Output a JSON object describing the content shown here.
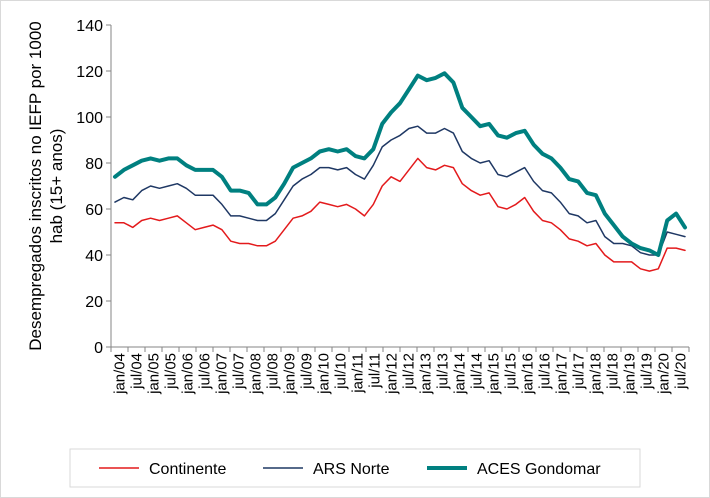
{
  "chart_data": {
    "type": "line",
    "title": "",
    "ylabel_lines": [
      "Desempregados inscritos no IEFP por 1000",
      "hab (15+ anos)"
    ],
    "xlabel": "",
    "ylim": [
      0,
      140
    ],
    "yticks": [
      0,
      20,
      40,
      60,
      80,
      100,
      120,
      140
    ],
    "xticks": [
      "jan/04",
      "jul/04",
      "jan/05",
      "jul/05",
      "jan/06",
      "jul/06",
      "jan/07",
      "jul/07",
      "jan/08",
      "jul/08",
      "jan/09",
      "jul/09",
      "jan/10",
      "jul/10",
      "jan/11",
      "jul/11",
      "jan/12",
      "jul/12",
      "jan/13",
      "jul/13",
      "jan/14",
      "jul/14",
      "jan/15",
      "jul/15",
      "jan/16",
      "jul/16",
      "jan/17",
      "jul/17",
      "jan/18",
      "jul/18",
      "jan/19",
      "jul/19",
      "jan/20",
      "jul/20"
    ],
    "legend_position": "bottom",
    "grid": false,
    "series": [
      {
        "name": "Continente",
        "color": "#e31a1c",
        "width": 1.5,
        "values": [
          54,
          54,
          52,
          55,
          56,
          55,
          56,
          57,
          54,
          51,
          52,
          53,
          51,
          46,
          45,
          45,
          44,
          44,
          46,
          51,
          56,
          57,
          59,
          63,
          62,
          61,
          62,
          60,
          57,
          62,
          70,
          74,
          72,
          77,
          82,
          78,
          77,
          79,
          78,
          71,
          68,
          66,
          67,
          61,
          60,
          62,
          65,
          59,
          55,
          54,
          51,
          47,
          46,
          44,
          45,
          40,
          37,
          37,
          37,
          34,
          33,
          34,
          43,
          43,
          42
        ]
      },
      {
        "name": "ARS Norte",
        "color": "#1f3864",
        "width": 1.5,
        "values": [
          63,
          65,
          64,
          68,
          70,
          69,
          70,
          71,
          69,
          66,
          66,
          66,
          62,
          57,
          57,
          56,
          55,
          55,
          58,
          64,
          70,
          73,
          75,
          78,
          78,
          77,
          78,
          75,
          73,
          79,
          87,
          90,
          92,
          95,
          96,
          93,
          93,
          95,
          93,
          85,
          82,
          80,
          81,
          75,
          74,
          76,
          78,
          72,
          68,
          67,
          63,
          58,
          57,
          54,
          55,
          48,
          45,
          45,
          44,
          41,
          40,
          40,
          50,
          49,
          48
        ]
      },
      {
        "name": "ACES Gondomar",
        "color": "#008080",
        "width": 4,
        "values": [
          74,
          77,
          79,
          81,
          82,
          81,
          82,
          82,
          79,
          77,
          77,
          77,
          74,
          68,
          68,
          67,
          62,
          62,
          65,
          71,
          78,
          80,
          82,
          85,
          86,
          85,
          86,
          83,
          82,
          86,
          97,
          102,
          106,
          112,
          118,
          116,
          117,
          119,
          115,
          104,
          100,
          96,
          97,
          92,
          91,
          93,
          94,
          88,
          84,
          82,
          78,
          73,
          72,
          67,
          66,
          58,
          53,
          48,
          45,
          43,
          42,
          40,
          55,
          58,
          52
        ]
      }
    ]
  }
}
